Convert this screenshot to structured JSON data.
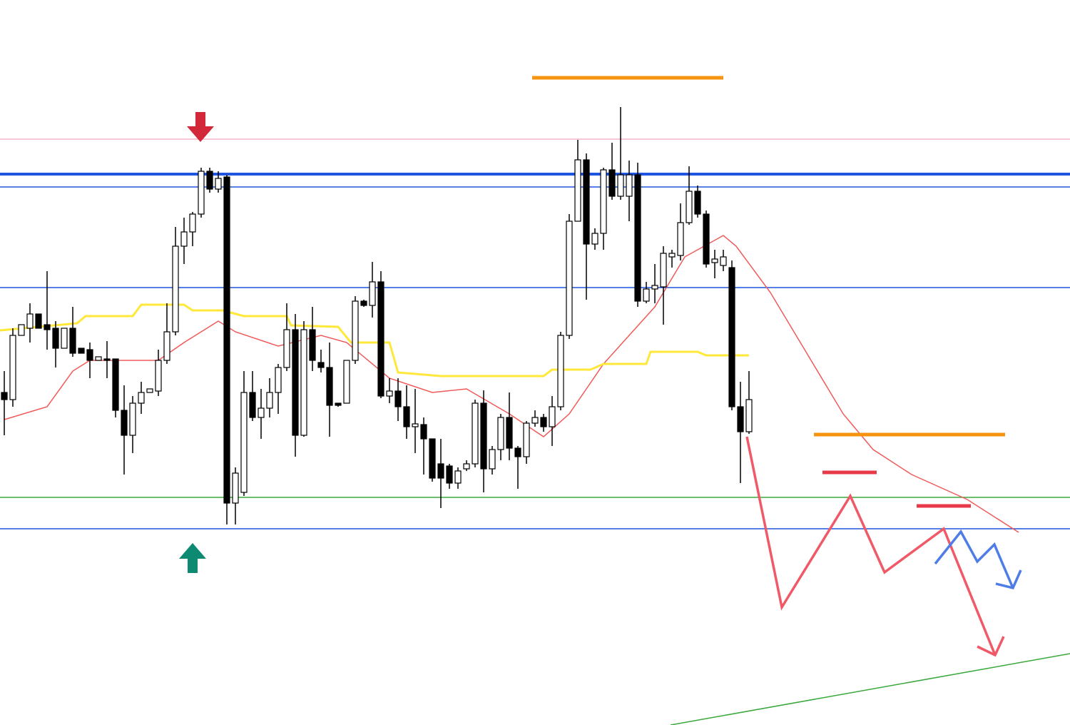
{
  "chart_data": {
    "type": "candlestick",
    "xlim": [
      -0.5,
      124.5
    ],
    "ylim": [
      0,
      1016
    ],
    "open": [
      466,
      456,
      546,
      556,
      576,
      561,
      556,
      528,
      556,
      528,
      526,
      511,
      513,
      513,
      441,
      406,
      451,
      466,
      468,
      511,
      551,
      671,
      691,
      716,
      776,
      751,
      768,
      311,
      326,
      466,
      431,
      444,
      466,
      501,
      554,
      406,
      554,
      508,
      501,
      451,
      451,
      511,
      594,
      588,
      621,
      461,
      468,
      446,
      418,
      421,
      401,
      366,
      363,
      339,
      359,
      366,
      451,
      359,
      386,
      431,
      388,
      376,
      423,
      431,
      418,
      446,
      546,
      706,
      792,
      674,
      689,
      778,
      741,
      741,
      771,
      594,
      611,
      614,
      656,
      658,
      704,
      748,
      716,
      648,
      644,
      641,
      446,
      411
    ],
    "high": [
      496,
      556,
      561,
      591,
      576,
      636,
      566,
      556,
      586,
      528,
      536,
      516,
      538,
      513,
      476,
      461,
      481,
      471,
      526,
      591,
      698,
      711,
      719,
      781,
      781,
      776,
      771,
      361,
      496,
      496,
      471,
      486,
      506,
      591,
      576,
      566,
      586,
      526,
      536,
      451,
      511,
      601,
      596,
      649,
      636,
      486,
      486,
      476,
      471,
      431,
      401,
      401,
      366,
      361,
      371,
      456,
      469,
      391,
      436,
      466,
      391,
      426,
      441,
      436,
      461,
      551,
      716,
      820,
      801,
      696,
      781,
      816,
      866,
      791,
      788,
      621,
      646,
      671,
      666,
      731,
      783,
      756,
      721,
      666,
      666,
      651,
      481,
      496
    ],
    "low": [
      406,
      446,
      546,
      536,
      556,
      526,
      501,
      528,
      516,
      521,
      486,
      511,
      486,
      431,
      351,
      381,
      436,
      466,
      461,
      506,
      546,
      646,
      671,
      711,
      746,
      746,
      281,
      281,
      321,
      426,
      401,
      431,
      436,
      496,
      376,
      404,
      496,
      494,
      404,
      446,
      451,
      506,
      586,
      571,
      458,
      451,
      426,
      401,
      381,
      351,
      341,
      304,
      331,
      331,
      356,
      361,
      326,
      351,
      371,
      371,
      331,
      366,
      418,
      411,
      391,
      441,
      541,
      706,
      596,
      666,
      666,
      736,
      736,
      706,
      586,
      591,
      591,
      561,
      641,
      651,
      701,
      711,
      641,
      626,
      636,
      441,
      339,
      408
    ],
    "close": [
      456,
      546,
      561,
      576,
      556,
      554,
      528,
      556,
      521,
      521,
      511,
      516,
      511,
      441,
      406,
      451,
      466,
      471,
      511,
      551,
      671,
      691,
      716,
      776,
      751,
      766,
      311,
      353,
      466,
      431,
      444,
      466,
      501,
      554,
      406,
      554,
      511,
      501,
      448,
      448,
      511,
      594,
      588,
      621,
      461,
      468,
      446,
      418,
      422,
      401,
      346,
      346,
      339,
      356,
      366,
      451,
      359,
      386,
      431,
      388,
      376,
      423,
      431,
      418,
      446,
      546,
      706,
      792,
      674,
      689,
      778,
      741,
      771,
      771,
      594,
      611,
      616,
      661,
      661,
      704,
      748,
      716,
      646,
      653,
      656,
      446,
      411,
      456
    ],
    "up_color": "#ffffff",
    "down_color": "#000000",
    "overlays": [
      {
        "color": "#f05a5a",
        "x": [
          0,
          5,
          8,
          10,
          18,
          21,
          25,
          27,
          32,
          37,
          40,
          45,
          50,
          54,
          59,
          63,
          66,
          70,
          73,
          76,
          79.5,
          84,
          85.5,
          89.5,
          94,
          98,
          101.5,
          106,
          112.5,
          118.5
        ],
        "values": [
          428,
          446,
          496,
          511,
          511,
          536,
          566,
          551,
          531,
          546,
          536,
          486,
          466,
          471,
          436,
          404,
          436,
          506,
          546,
          586,
          656,
          686,
          671,
          606,
          516,
          436,
          386,
          351,
          316,
          270
        ]
      },
      {
        "color": "#ffe83a",
        "x": [
          -0.5,
          8.5,
          9.5,
          15,
          16,
          21,
          22,
          25.5,
          28,
          33,
          33.5,
          39,
          40.5,
          45,
          46,
          51,
          63,
          64,
          68.5,
          70,
          75,
          75.5,
          81,
          82,
          87
        ],
        "values": [
          553,
          563,
          573,
          573,
          589,
          589,
          581,
          581,
          573,
          573,
          560,
          558,
          536,
          536,
          494,
          489,
          489,
          498,
          498,
          506,
          506,
          523,
          523,
          518,
          518
        ]
      }
    ],
    "levels": [
      {
        "value": 821,
        "color": "#f4b6c8"
      },
      {
        "value": 772,
        "color": "#1f55e0"
      },
      {
        "value": 754,
        "color": "#1f55e0"
      },
      {
        "value": 613,
        "color": "#1f55e0"
      },
      {
        "value": 319,
        "color": "#3aa83a"
      },
      {
        "value": 275,
        "color": "#1f55e0"
      }
    ]
  }
}
